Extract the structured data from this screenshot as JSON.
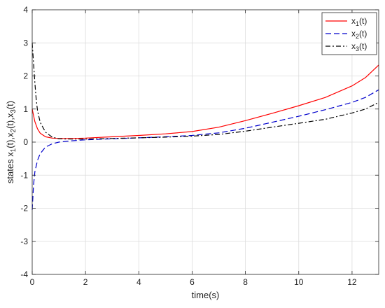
{
  "chart_data": {
    "type": "line",
    "title": "",
    "xlabel": "time(s)",
    "ylabel": "states x_1(t),x_2(t),x_3(t)",
    "xlim": [
      0,
      13
    ],
    "ylim": [
      -4,
      4
    ],
    "x_ticks": [
      0,
      2,
      4,
      6,
      8,
      10,
      12
    ],
    "y_ticks": [
      -4,
      -3,
      -2,
      -1,
      0,
      1,
      2,
      3,
      4
    ],
    "grid": true,
    "legend_position": "top-right",
    "series": [
      {
        "name": "x_1(t)",
        "color": "#ff0000",
        "dash": "solid",
        "points": [
          [
            0,
            1.0
          ],
          [
            0.1,
            0.62
          ],
          [
            0.2,
            0.4
          ],
          [
            0.3,
            0.27
          ],
          [
            0.5,
            0.16
          ],
          [
            0.75,
            0.12
          ],
          [
            1.0,
            0.11
          ],
          [
            1.5,
            0.11
          ],
          [
            2,
            0.12
          ],
          [
            3,
            0.16
          ],
          [
            4,
            0.2
          ],
          [
            5,
            0.25
          ],
          [
            6,
            0.32
          ],
          [
            7,
            0.45
          ],
          [
            8,
            0.65
          ],
          [
            9,
            0.87
          ],
          [
            10,
            1.1
          ],
          [
            11,
            1.35
          ],
          [
            12,
            1.7
          ],
          [
            12.5,
            1.95
          ],
          [
            13,
            2.33
          ]
        ]
      },
      {
        "name": "x_2(t)",
        "color": "#0000cc",
        "dash": "dashed",
        "points": [
          [
            0,
            -2.05
          ],
          [
            0.05,
            -1.3
          ],
          [
            0.1,
            -0.9
          ],
          [
            0.2,
            -0.55
          ],
          [
            0.3,
            -0.35
          ],
          [
            0.5,
            -0.15
          ],
          [
            0.75,
            -0.05
          ],
          [
            1.0,
            0.0
          ],
          [
            1.5,
            0.04
          ],
          [
            2,
            0.07
          ],
          [
            3,
            0.1
          ],
          [
            4,
            0.13
          ],
          [
            5,
            0.16
          ],
          [
            6,
            0.2
          ],
          [
            7,
            0.28
          ],
          [
            8,
            0.42
          ],
          [
            9,
            0.6
          ],
          [
            10,
            0.78
          ],
          [
            11,
            0.98
          ],
          [
            12,
            1.2
          ],
          [
            12.5,
            1.35
          ],
          [
            13,
            1.58
          ]
        ]
      },
      {
        "name": "x_3(t)",
        "color": "#000000",
        "dash": "dashdot",
        "points": [
          [
            0,
            3.0
          ],
          [
            0.05,
            2.4
          ],
          [
            0.1,
            1.8
          ],
          [
            0.15,
            1.3
          ],
          [
            0.2,
            0.95
          ],
          [
            0.3,
            0.6
          ],
          [
            0.5,
            0.3
          ],
          [
            0.75,
            0.15
          ],
          [
            1.0,
            0.1
          ],
          [
            1.5,
            0.09
          ],
          [
            2,
            0.09
          ],
          [
            3,
            0.11
          ],
          [
            4,
            0.13
          ],
          [
            5,
            0.15
          ],
          [
            6,
            0.18
          ],
          [
            7,
            0.23
          ],
          [
            8,
            0.33
          ],
          [
            9,
            0.45
          ],
          [
            10,
            0.57
          ],
          [
            11,
            0.69
          ],
          [
            12,
            0.88
          ],
          [
            12.5,
            1.0
          ],
          [
            13,
            1.2
          ]
        ]
      }
    ]
  }
}
